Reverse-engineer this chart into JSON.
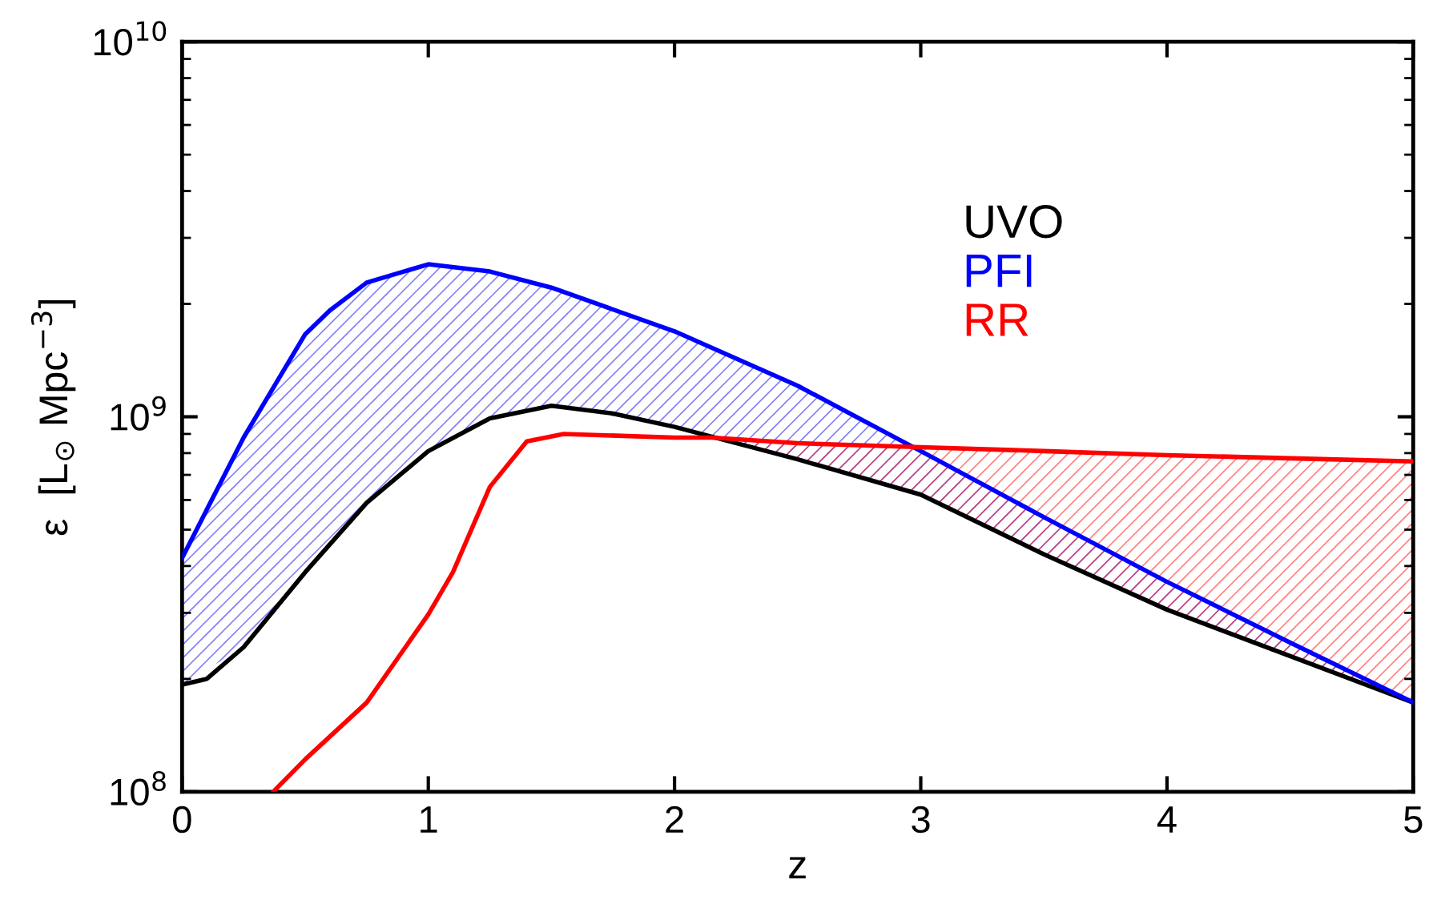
{
  "chart_data": {
    "type": "line",
    "xlabel": "z",
    "ylabel": "ε  [L$_{⊙}$ Mpc$^{−3}$]",
    "log": "y",
    "xlim": [
      0,
      5
    ],
    "xticks": [
      0,
      1,
      2,
      3,
      4,
      5
    ],
    "ylim": [
      100000000.0,
      10000000000.0
    ],
    "yticks": [
      {
        "value": 100000000.0,
        "label": "10$^{8}$"
      },
      {
        "value": 1000000000.0,
        "label": "10$^{9}$"
      },
      {
        "value": 10000000000.0,
        "label": "10$^{10}$"
      }
    ],
    "grid": false,
    "legend": "top right",
    "marker": "none",
    "line_style": "solid",
    "series": [
      {
        "name": "UVO",
        "color": "#000000",
        "x": [
          0,
          0.1,
          0.25,
          0.5,
          0.75,
          1,
          1.25,
          1.5,
          1.75,
          2,
          2.5,
          3,
          3.5,
          4,
          4.5,
          5
        ],
        "values": [
          193000000.0,
          200000000.0,
          243000000.0,
          385000000.0,
          590000000.0,
          810000000.0,
          990000000.0,
          1070000000.0,
          1020000000.0,
          940000000.0,
          770000000.0,
          620000000.0,
          430000000.0,
          306000000.0,
          230000000.0,
          173000000.0
        ]
      },
      {
        "name": "PFI",
        "color": "#0000ff",
        "x": [
          0,
          0.25,
          0.5,
          0.6,
          0.75,
          1,
          1.25,
          1.5,
          2,
          2.5,
          3,
          3.5,
          4,
          4.5,
          5
        ],
        "values": [
          420000000.0,
          880000000.0,
          1660000000.0,
          1920000000.0,
          2280000000.0,
          2550000000.0,
          2440000000.0,
          2210000000.0,
          1690000000.0,
          1210000000.0,
          810000000.0,
          540000000.0,
          363000000.0,
          250000000.0,
          173000000.0
        ],
        "lower": [
          193000000.0,
          243000000.0,
          385000000.0,
          460000000.0,
          590000000.0,
          810000000.0,
          990000000.0,
          1070000000.0,
          940000000.0,
          770000000.0,
          620000000.0,
          430000000.0,
          306000000.0,
          230000000.0,
          173000000.0
        ],
        "upper": [
          420000000.0,
          880000000.0,
          1660000000.0,
          1920000000.0,
          2280000000.0,
          2550000000.0,
          2440000000.0,
          2210000000.0,
          1690000000.0,
          1210000000.0,
          810000000.0,
          540000000.0,
          363000000.0,
          250000000.0,
          173000000.0
        ]
      },
      {
        "name": "RR",
        "color": "#ff0000",
        "x": [
          0.37,
          0.5,
          0.75,
          1,
          1.1,
          1.25,
          1.4,
          1.55,
          2,
          2.15,
          2.5,
          3,
          3.5,
          4,
          4.5,
          5
        ],
        "values": [
          100000000.0,
          122000000.0,
          173000000.0,
          297000000.0,
          385000000.0,
          650000000.0,
          860000000.0,
          900000000.0,
          880000000.0,
          880000000.0,
          850000000.0,
          830000000.0,
          810000000.0,
          790000000.0,
          775000000.0,
          760000000.0
        ],
        "lower": [
          null,
          null,
          null,
          null,
          null,
          null,
          null,
          null,
          null,
          880000000.0,
          770000000.0,
          620000000.0,
          430000000.0,
          306000000.0,
          230000000.0,
          173000000.0
        ],
        "upper": [
          null,
          null,
          null,
          null,
          null,
          null,
          null,
          null,
          null,
          880000000.0,
          850000000.0,
          830000000.0,
          810000000.0,
          790000000.0,
          775000000.0,
          760000000.0
        ]
      }
    ]
  }
}
